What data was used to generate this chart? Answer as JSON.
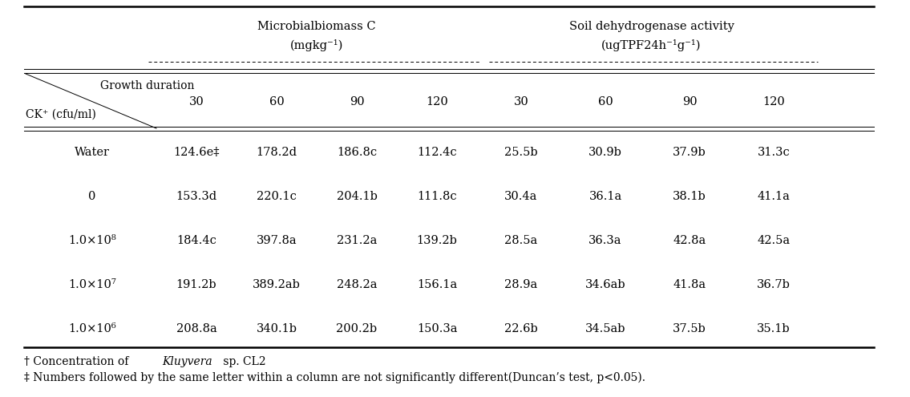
{
  "header_group1": "Microbialbiomass C",
  "header_group1_sub": "(mgkg⁻¹)",
  "header_group2": "Soil dehydrogenase activity",
  "header_group2_sub": "(ugTPF24h⁻¹g⁻¹)",
  "col_header_top": "Growth duration",
  "col_header_bot": "CK⁺ (cfu/ml)",
  "subheaders": [
    "30",
    "60",
    "90",
    "120",
    "30",
    "60",
    "90",
    "120"
  ],
  "row_labels": [
    "Water",
    "0",
    "1.0×10⁸",
    "1.0×10⁷",
    "1.0×10⁶"
  ],
  "data": [
    [
      "124.6e‡",
      "178.2d",
      "186.8c",
      "112.4c",
      "25.5b",
      "30.9b",
      "37.9b",
      "31.3c"
    ],
    [
      "153.3d",
      "220.1c",
      "204.1b",
      "111.8c",
      "30.4a",
      "36.1a",
      "38.1b",
      "41.1a"
    ],
    [
      "184.4c",
      "397.8a",
      "231.2a",
      "139.2b",
      "28.5a",
      "36.3a",
      "42.8a",
      "42.5a"
    ],
    [
      "191.2b",
      "389.2ab",
      "248.2a",
      "156.1a",
      "28.9a",
      "34.6ab",
      "41.8a",
      "36.7b"
    ],
    [
      "208.8a",
      "340.1b",
      "200.2b",
      "150.3a",
      "22.6b",
      "34.5ab",
      "37.5b",
      "35.1b"
    ]
  ],
  "bg_color": "#ffffff",
  "text_color": "#000000",
  "font_size": 10.5,
  "font_family": "DejaVu Serif"
}
